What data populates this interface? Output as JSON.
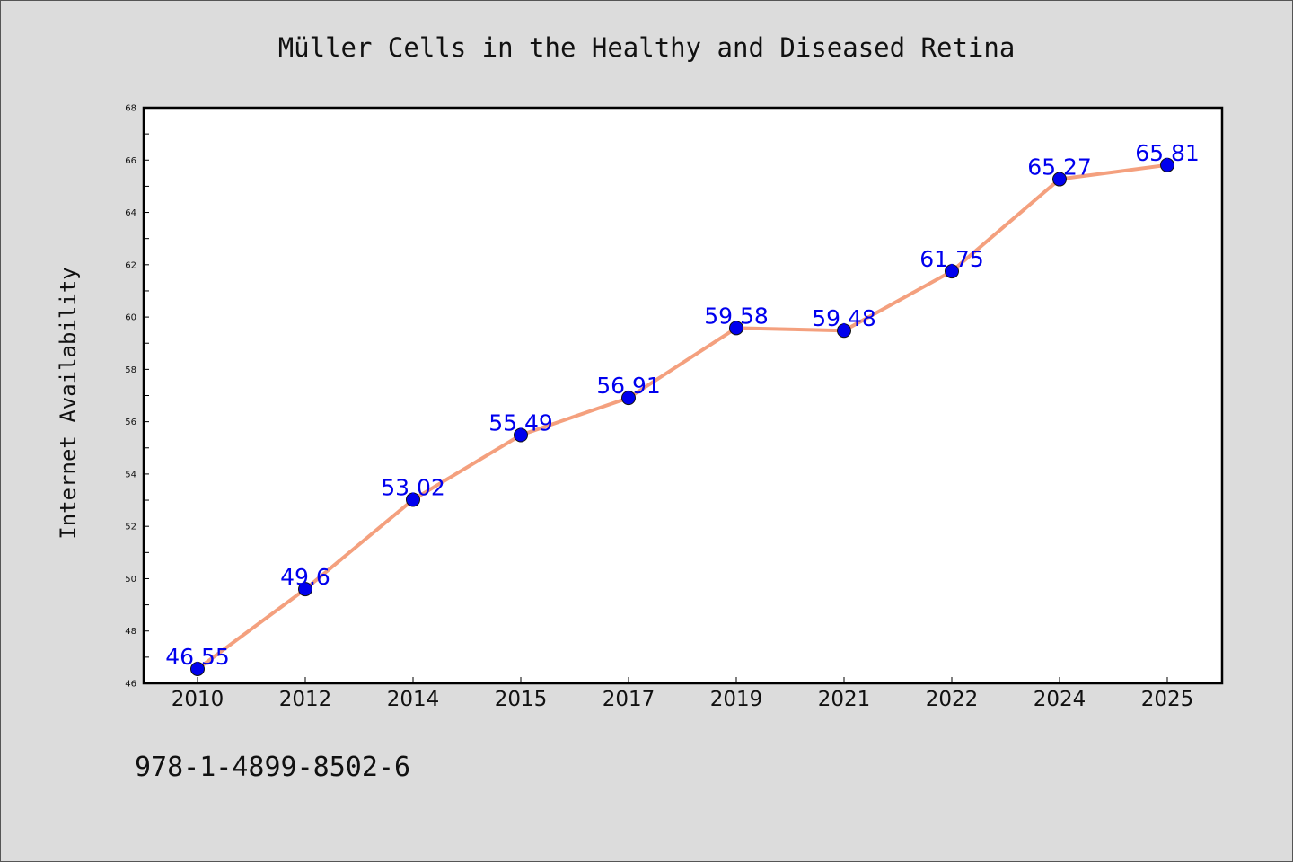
{
  "chart_data": {
    "type": "line",
    "title": "Müller Cells in the Healthy and Diseased Retina",
    "xlabel": "",
    "ylabel": "Internet Availability",
    "categories": [
      "2010",
      "2012",
      "2014",
      "2015",
      "2017",
      "2019",
      "2021",
      "2022",
      "2024",
      "2025"
    ],
    "series": [
      {
        "values": [
          46.55,
          49.6,
          53.02,
          55.49,
          56.91,
          59.58,
          59.48,
          61.75,
          65.27,
          65.81
        ],
        "labels": [
          "46.55",
          "49.6",
          "53.02",
          "55.49",
          "56.91",
          "59.58",
          "59.48",
          "61.75",
          "65.27",
          "65.81"
        ],
        "line_color": "#f4a07e",
        "marker_color": "#0000ee"
      }
    ],
    "ylim": [
      46,
      68
    ],
    "yticks": [
      "46",
      "48",
      "50",
      "52",
      "54",
      "56",
      "58",
      "60",
      "62",
      "64",
      "66",
      "68"
    ],
    "grid": false,
    "legend": "none"
  },
  "footer_text": "978-1-4899-8502-6",
  "colors": {
    "background": "#dcdcdc",
    "plot_background": "#ffffff",
    "line": "#f4a07e",
    "marker": "#0000ee",
    "label": "#0000ee"
  }
}
